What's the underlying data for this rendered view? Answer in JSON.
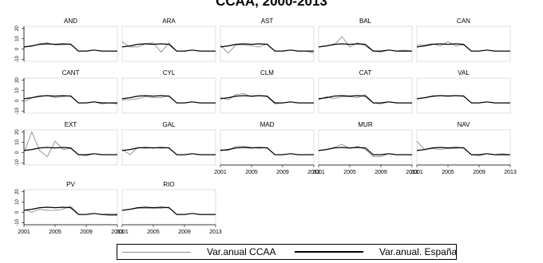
{
  "title": "CCAA, 2000-2013",
  "legend": [
    {
      "label": "Var.anual CCAA",
      "color": "#8c8c8c"
    },
    {
      "label": "Var.anual. España",
      "color": "#000000"
    }
  ],
  "chart_data": {
    "type": "line",
    "panel_layout": "small multiples, 5 columns",
    "x": [
      2001,
      2002,
      2003,
      2004,
      2005,
      2006,
      2007,
      2008,
      2009,
      2010,
      2011,
      2012,
      2013
    ],
    "xticks": [
      2001,
      2005,
      2009,
      2013
    ],
    "yticks": [
      -10,
      0,
      10,
      20
    ],
    "ylim": [
      -12,
      22
    ],
    "xlim": [
      2001,
      2013
    ],
    "spain": [
      2,
      3,
      4.5,
      5,
      4.5,
      5,
      4.5,
      -2,
      -2,
      -1,
      -2,
      -2,
      -2
    ],
    "panels": [
      {
        "name": "AND",
        "values": [
          2,
          2.5,
          5,
          6,
          4,
          4,
          5,
          -2,
          -2,
          -1,
          -2,
          -2,
          -2
        ]
      },
      {
        "name": "ARA",
        "values": [
          7,
          2,
          2,
          5,
          6,
          -3,
          6,
          -2,
          -2,
          -1,
          -2,
          -2,
          -2
        ]
      },
      {
        "name": "AST",
        "values": [
          4,
          -4,
          4,
          4,
          3,
          2,
          5,
          -2,
          -2,
          -1,
          -2,
          -2,
          -4
        ]
      },
      {
        "name": "BAL",
        "values": [
          2,
          3,
          4,
          12,
          2,
          6,
          3,
          -2,
          -3,
          -1,
          -2,
          -1,
          -2
        ]
      },
      {
        "name": "CAN",
        "values": [
          4,
          4,
          5,
          3,
          7,
          3,
          4,
          -2,
          -2,
          -1,
          -2,
          -2,
          -2
        ]
      },
      {
        "name": "CANT",
        "values": [
          -1,
          3,
          4,
          5,
          3,
          4,
          5,
          -2,
          -2,
          -1,
          -3,
          -2,
          -3
        ]
      },
      {
        "name": "CYL",
        "values": [
          1,
          1,
          2,
          4,
          3,
          3,
          5,
          -2,
          -2,
          -1,
          -2,
          -2,
          -2
        ]
      },
      {
        "name": "CLM",
        "values": [
          3,
          1,
          6,
          7,
          4,
          5,
          4,
          -3,
          -2,
          -1,
          -2,
          -2,
          -2
        ]
      },
      {
        "name": "CAT",
        "values": [
          1,
          4,
          2,
          4,
          4,
          3,
          6,
          -2,
          -3,
          -1,
          -2,
          -2,
          -2
        ]
      },
      {
        "name": "VAL",
        "values": [
          2,
          3,
          4,
          5,
          5,
          5,
          5,
          -2,
          -2,
          -1,
          -2,
          -2,
          -2
        ]
      },
      {
        "name": "EXT",
        "values": [
          0,
          20,
          2,
          -4,
          11,
          3,
          4,
          -2,
          -3,
          -1,
          -2,
          -2,
          -2
        ]
      },
      {
        "name": "GAL",
        "values": [
          3,
          -2,
          5,
          4,
          5,
          4,
          5,
          -2,
          -2,
          -1,
          -2,
          -2,
          -2
        ]
      },
      {
        "name": "MAD",
        "values": [
          3,
          2,
          6,
          6,
          5,
          4,
          5,
          -2,
          -2,
          -1,
          -2,
          -2,
          -2
        ]
      },
      {
        "name": "MUR",
        "values": [
          2,
          3,
          5,
          8,
          4,
          6,
          3,
          -4,
          -4,
          -1,
          -2,
          -2,
          -2
        ]
      },
      {
        "name": "NAV",
        "values": [
          11,
          3,
          4,
          3,
          4,
          4,
          5,
          -2,
          -3,
          -1,
          -2,
          -1,
          -2
        ]
      },
      {
        "name": "PV",
        "values": [
          3,
          0,
          3,
          2,
          2,
          3,
          6,
          -2,
          -2,
          -1,
          -2,
          -3,
          -3
        ]
      },
      {
        "name": "RIO",
        "values": [
          2,
          3,
          4,
          4,
          4,
          4,
          5,
          -2,
          -2,
          -1,
          -2,
          -2,
          -2
        ]
      }
    ]
  }
}
